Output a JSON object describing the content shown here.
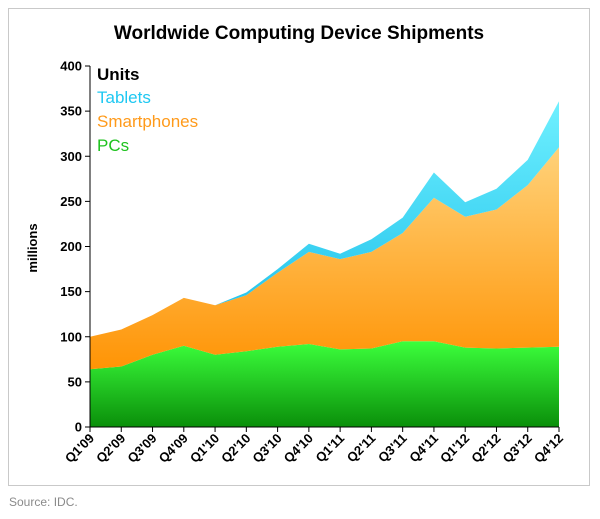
{
  "chart_data": {
    "type": "area",
    "stacked": true,
    "title": "Worldwide Computing Device Shipments",
    "xlabel": "",
    "ylabel": "millions",
    "ylim": [
      0,
      400
    ],
    "yticks": [
      0,
      50,
      100,
      150,
      200,
      250,
      300,
      350,
      400
    ],
    "categories": [
      "Q1'09",
      "Q2'09",
      "Q3'09",
      "Q4'09",
      "Q1'10",
      "Q2'10",
      "Q3'10",
      "Q4'10",
      "Q1'11",
      "Q2'11",
      "Q3'11",
      "Q4'11",
      "Q1'12",
      "Q2'12",
      "Q3'12",
      "Q4'12"
    ],
    "legend_title": "Units",
    "legend_position": "top-left",
    "series": [
      {
        "name": "PCs",
        "color": "#1ec21e",
        "values": [
          64,
          67,
          80,
          90,
          80,
          84,
          89,
          92,
          86,
          87,
          95,
          95,
          88,
          87,
          88,
          89
        ]
      },
      {
        "name": "Smartphones",
        "color": "#ff9a1a",
        "values": [
          36,
          41,
          44,
          53,
          55,
          62,
          82,
          102,
          100,
          107,
          120,
          159,
          145,
          154,
          180,
          221
        ]
      },
      {
        "name": "Tablets",
        "color": "#1fc8f2",
        "values": [
          0,
          0,
          0,
          0,
          0,
          3,
          4,
          9,
          6,
          14,
          17,
          28,
          16,
          23,
          28,
          51
        ]
      }
    ]
  },
  "source_note": "Source: IDC."
}
